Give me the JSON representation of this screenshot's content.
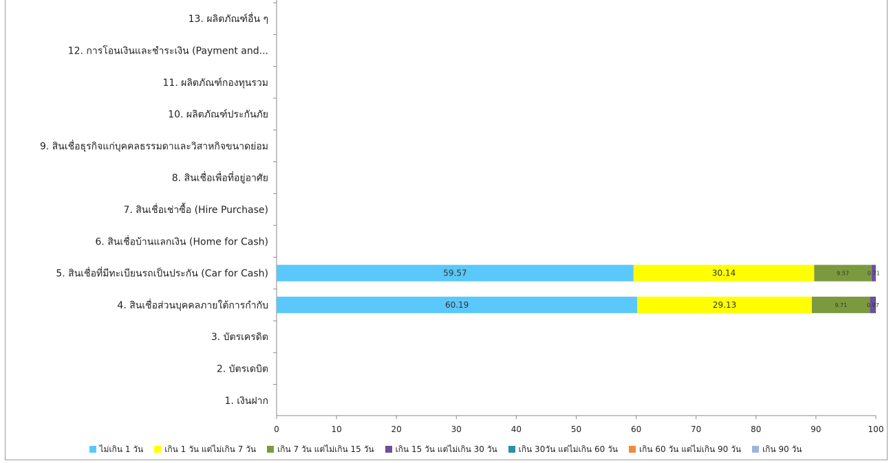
{
  "chart_data": {
    "type": "bar",
    "orientation": "horizontal",
    "stacked": true,
    "categories": [
      "13. ผลิตภัณฑ์อื่น ๆ",
      "12. การโอนเงินและชำระเงิน (Payment and...",
      "11. ผลิตภัณฑ์กองทุนรวม",
      "10. ผลิตภัณฑ์ประกันภัย",
      "9. สินเชื่อธุรกิจแก่บุคคลธรรมดาและวิสาหกิจขนาดย่อม",
      "8. สินเชื่อเพื่อที่อยู่อาศัย",
      "7. สินเชื่อเช่าซื้อ (Hire Purchase)",
      "6. สินเชื่อบ้านแลกเงิน (Home for Cash)",
      "5. สินเชื่อที่มีทะเบียนรถเป็นประกัน (Car for Cash)",
      "4. สินเชื่อส่วนบุคคลภายใต้การกำกับ",
      "3. บัตรเครดิต",
      "2. บัตรเดบิต",
      "1. เงินฝาก"
    ],
    "series": [
      {
        "name": "ไม่เกิน 1 วัน",
        "color": "#5ac8fa",
        "values": [
          null,
          null,
          null,
          null,
          null,
          null,
          null,
          null,
          59.57,
          60.19,
          null,
          null,
          null
        ]
      },
      {
        "name": "เกิน 1 วัน แต่ไม่เกิน 7 วัน",
        "color": "#ffff00",
        "values": [
          null,
          null,
          null,
          null,
          null,
          null,
          null,
          null,
          30.14,
          29.13,
          null,
          null,
          null
        ]
      },
      {
        "name": "เกิน 7 วัน แต่ไม่เกิน 15 วัน",
        "color": "#7b9a3f",
        "values": [
          null,
          null,
          null,
          null,
          null,
          null,
          null,
          null,
          9.57,
          9.71,
          null,
          null,
          null
        ]
      },
      {
        "name": "เกิน 15 วัน แต่ไม่เกิน 30 วัน",
        "color": "#6b4fa0",
        "values": [
          null,
          null,
          null,
          null,
          null,
          null,
          null,
          null,
          0.71,
          0.97,
          null,
          null,
          null
        ]
      },
      {
        "name": "เกิน 30วัน แต่ไม่เกิน 60 วัน",
        "color": "#2e8fa8",
        "values": [
          null,
          null,
          null,
          null,
          null,
          null,
          null,
          null,
          null,
          null,
          null,
          null,
          null
        ]
      },
      {
        "name": "เกิน 60 วัน แต่ไม่เกิน 90 วัน",
        "color": "#f08a3c",
        "values": [
          null,
          null,
          null,
          null,
          null,
          null,
          null,
          null,
          null,
          null,
          null,
          null,
          null
        ]
      },
      {
        "name": "เกิน 90 วัน",
        "color": "#9fb3e0",
        "values": [
          null,
          null,
          null,
          null,
          null,
          null,
          null,
          null,
          null,
          null,
          null,
          null,
          null
        ]
      }
    ],
    "xlim": [
      0,
      100
    ],
    "xticks": [
      "0",
      "10",
      "20",
      "30",
      "40",
      "50",
      "60",
      "70",
      "80",
      "90",
      "100"
    ],
    "grid": false,
    "legend_position": "bottom"
  }
}
